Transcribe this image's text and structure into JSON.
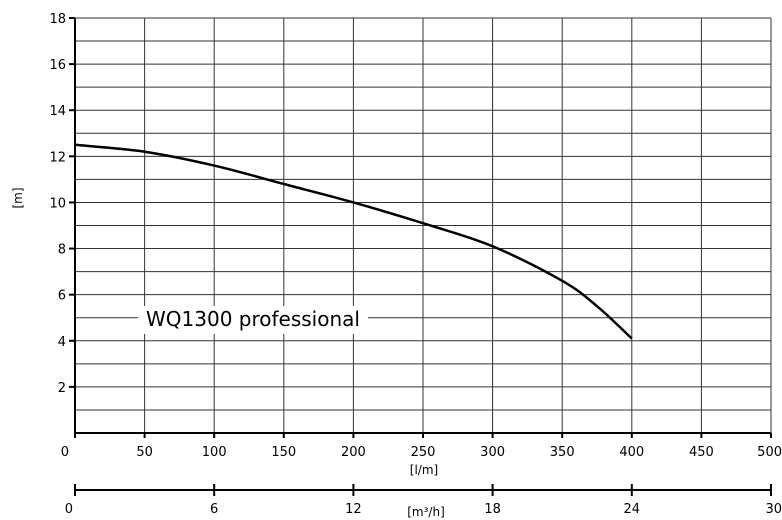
{
  "chart_data": {
    "type": "line",
    "title": "",
    "xlabel": "[l/m]",
    "ylabel": "[m]",
    "secondary_xlabel": "[m³/h]",
    "xlim": [
      0,
      500
    ],
    "ylim": [
      0,
      18
    ],
    "secondary_xlim": [
      0,
      30
    ],
    "x_ticks": [
      "0",
      "50",
      "100",
      "150",
      "200",
      "250",
      "300",
      "350",
      "400",
      "450",
      "500"
    ],
    "y_ticks": [
      "2",
      "4",
      "6",
      "8",
      "10",
      "12",
      "14",
      "16",
      "18"
    ],
    "secondary_x_ticks": [
      "0",
      "6",
      "12",
      "18",
      "24",
      "30"
    ],
    "grid": true,
    "series": [
      {
        "name": "WQ1300 professional",
        "x": [
          0,
          50,
          100,
          150,
          200,
          250,
          300,
          350,
          375,
          400
        ],
        "y": [
          12.5,
          12.2,
          11.6,
          10.8,
          10.0,
          9.1,
          8.1,
          6.6,
          5.5,
          4.1
        ]
      }
    ],
    "colors": {
      "line": "#000000",
      "grid": "#333333"
    }
  }
}
